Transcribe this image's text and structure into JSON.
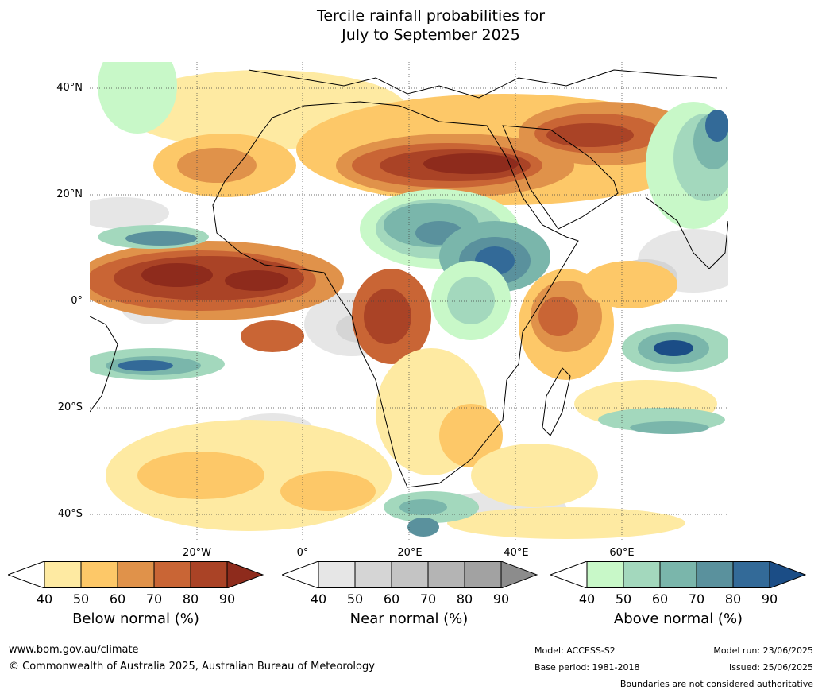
{
  "title_line1": "Tercile rainfall probabilities for",
  "title_line2": "July to September 2025",
  "lat_labels": [
    "40°N",
    "20°N",
    "0°",
    "20°S",
    "40°S"
  ],
  "lon_labels": [
    "20°W",
    "0°",
    "20°E",
    "40°E",
    "60°E"
  ],
  "colorbars": [
    {
      "title": "Below normal (%)",
      "ticks": [
        "40",
        "50",
        "60",
        "70",
        "80",
        "90"
      ],
      "colors": [
        "#ffffff",
        "#feeaa2",
        "#fdc868",
        "#e0924a",
        "#c96535",
        "#aa4326",
        "#8e2b1c"
      ]
    },
    {
      "title": "Near normal (%)",
      "ticks": [
        "40",
        "50",
        "60",
        "70",
        "80",
        "90"
      ],
      "colors": [
        "#ffffff",
        "#e6e6e6",
        "#d5d5d5",
        "#c4c4c4",
        "#b4b4b4",
        "#a2a2a2",
        "#8c8c8c"
      ]
    },
    {
      "title": "Above normal (%)",
      "ticks": [
        "40",
        "50",
        "60",
        "70",
        "80",
        "90"
      ],
      "colors": [
        "#ffffff",
        "#c8f8c8",
        "#a3d8bd",
        "#7ab6ab",
        "#5a919d",
        "#336a98",
        "#1b4d86"
      ]
    }
  ],
  "footer": {
    "website": "www.bom.gov.au/climate",
    "copyright": "© Commonwealth of Australia 2025, Australian Bureau of Meteorology",
    "model": "Model: ACCESS-S2",
    "base_period": "Base period: 1981-2018",
    "model_run": "Model run: 23/06/2025",
    "issued": "Issued: 25/06/2025",
    "disclaimer": "Boundaries are not considered authoritative"
  }
}
